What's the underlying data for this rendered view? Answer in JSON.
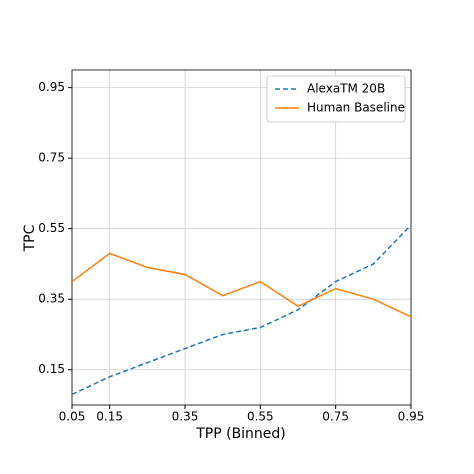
{
  "chart_data": {
    "type": "line",
    "x_label": "TPP (Binned)",
    "y_label": "TPC",
    "x": [
      0.05,
      0.15,
      0.25,
      0.35,
      0.45,
      0.55,
      0.65,
      0.75,
      0.85,
      0.95
    ],
    "series": [
      {
        "name": "AlexaTM 20B",
        "color": "#1f77b4",
        "style": "dashed",
        "values": [
          0.08,
          0.13,
          0.17,
          0.21,
          0.25,
          0.27,
          0.32,
          0.4,
          0.45,
          0.56
        ]
      },
      {
        "name": "Human Baseline",
        "color": "#ff7f0e",
        "style": "solid",
        "values": [
          0.4,
          0.48,
          0.44,
          0.42,
          0.36,
          0.4,
          0.33,
          0.38,
          0.35,
          0.3
        ]
      }
    ],
    "xlim": [
      0.05,
      0.95
    ],
    "xticks": [
      0.05,
      0.15,
      0.35,
      0.55,
      0.75,
      0.95
    ],
    "ylim": [
      0.05,
      1.0
    ],
    "yticks": [
      0.15,
      0.35,
      0.55,
      0.75,
      0.95
    ],
    "grid": true,
    "legend": "upper right"
  }
}
